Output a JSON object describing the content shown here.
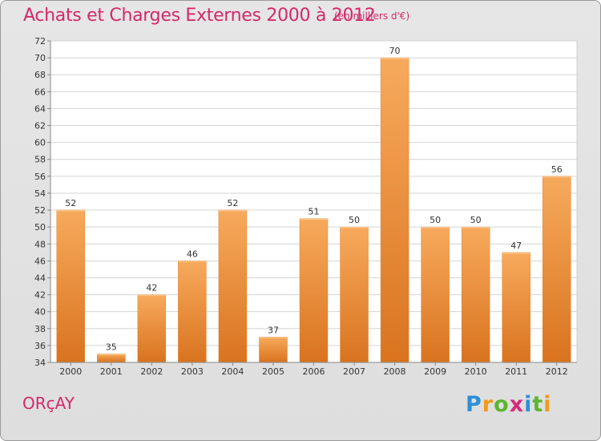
{
  "title": "Achats et Charges Externes 2000 à 2012",
  "subtitle": "(en milliers d'€)",
  "town": "ORçAY",
  "logo": {
    "text": "Proxiti",
    "letters": [
      {
        "ch": "P",
        "color": "#2e8fd8"
      },
      {
        "ch": "r",
        "color": "#f09a1c"
      },
      {
        "ch": "o",
        "color": "#5cb531"
      },
      {
        "ch": "x",
        "color": "#d82a7a"
      },
      {
        "ch": "i",
        "color": "#2e8fd8"
      },
      {
        "ch": "t",
        "color": "#5cb531"
      },
      {
        "ch": "i",
        "color": "#f09a1c"
      }
    ]
  },
  "colors": {
    "accent": "#d6286a",
    "bar_light": "#f6a85a",
    "bar_dark": "#d8721e"
  },
  "chart_data": {
    "type": "bar",
    "title": "Achats et Charges Externes 2000 à 2012",
    "subtitle": "(en milliers d'€)",
    "categories": [
      "2000",
      "2001",
      "2002",
      "2003",
      "2004",
      "2005",
      "2006",
      "2007",
      "2008",
      "2009",
      "2010",
      "2011",
      "2012"
    ],
    "values": [
      52,
      35,
      42,
      46,
      52,
      37,
      51,
      50,
      70,
      50,
      50,
      47,
      56
    ],
    "ylim": [
      34,
      72
    ],
    "yticks": [
      34,
      36,
      38,
      40,
      42,
      44,
      46,
      48,
      50,
      52,
      54,
      56,
      58,
      60,
      62,
      64,
      66,
      68,
      70,
      72
    ],
    "grid": true,
    "legend": "none"
  }
}
